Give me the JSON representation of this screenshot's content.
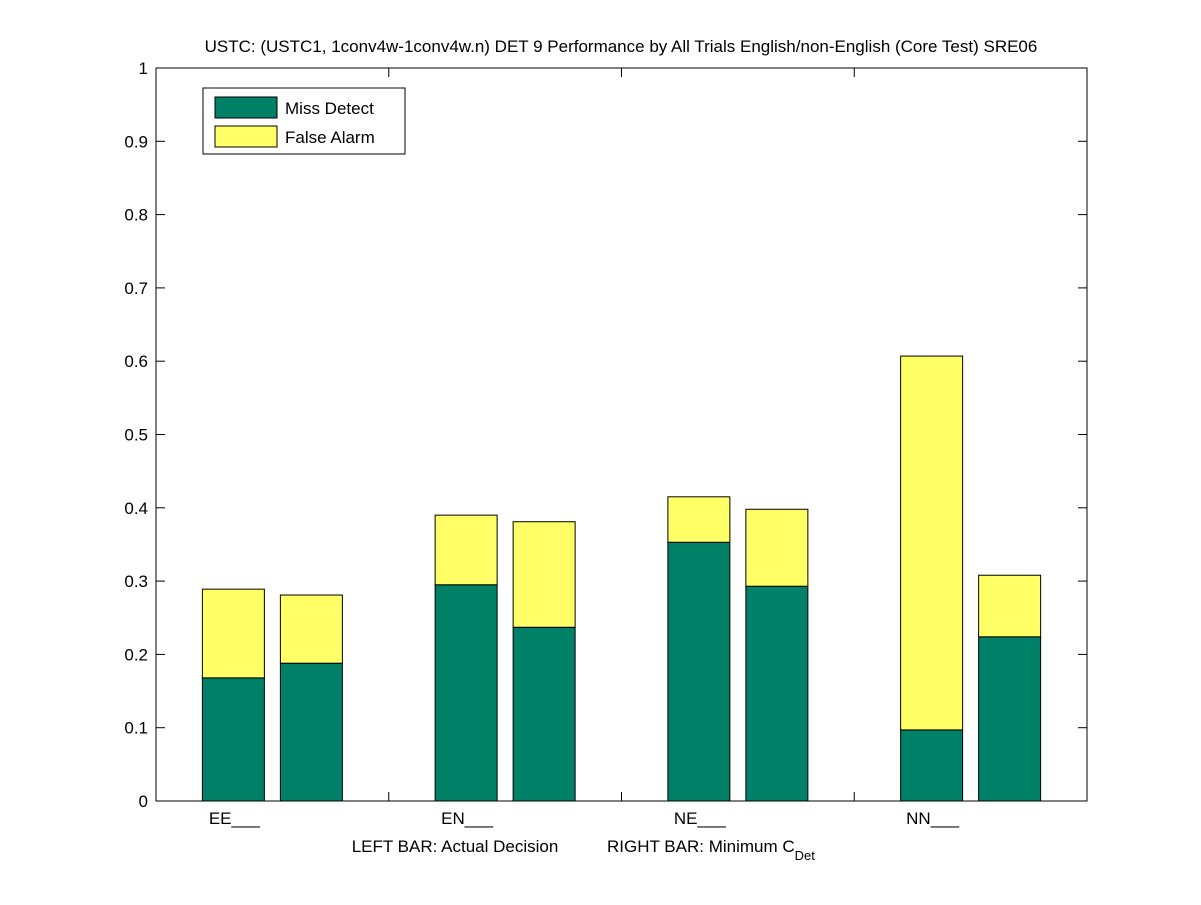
{
  "chart_data": {
    "type": "bar",
    "stacked": true,
    "title": "USTC: (USTC1, 1conv4w-1conv4w.n) DET 9 Performance by All Trials English/non-English (Core Test) SRE06",
    "xlabel_left": "LEFT BAR: Actual Decision",
    "xlabel_right_prefix": "RIGHT BAR: Minimum C",
    "xlabel_right_sub": "Det",
    "ylabel": "",
    "ylim": [
      0,
      1
    ],
    "yticks": [
      "0",
      "0.1",
      "0.2",
      "0.3",
      "0.4",
      "0.5",
      "0.6",
      "0.7",
      "0.8",
      "0.9",
      "1"
    ],
    "categories": [
      "EE___",
      "EN___",
      "NE___",
      "NN___"
    ],
    "bars_per_category": [
      "Actual Decision",
      "Minimum CDet"
    ],
    "series": [
      {
        "name": "Miss Detect",
        "color": "#008066",
        "values": [
          [
            0.168,
            0.188
          ],
          [
            0.295,
            0.237
          ],
          [
            0.353,
            0.293
          ],
          [
            0.097,
            0.224
          ]
        ]
      },
      {
        "name": "False Alarm",
        "color": "#ffff66",
        "values": [
          [
            0.121,
            0.093
          ],
          [
            0.095,
            0.144
          ],
          [
            0.062,
            0.105
          ],
          [
            0.51,
            0.084
          ]
        ]
      }
    ],
    "legend": {
      "placement": "top-left",
      "entries": [
        "Miss Detect",
        "False Alarm"
      ]
    },
    "grid": false
  }
}
